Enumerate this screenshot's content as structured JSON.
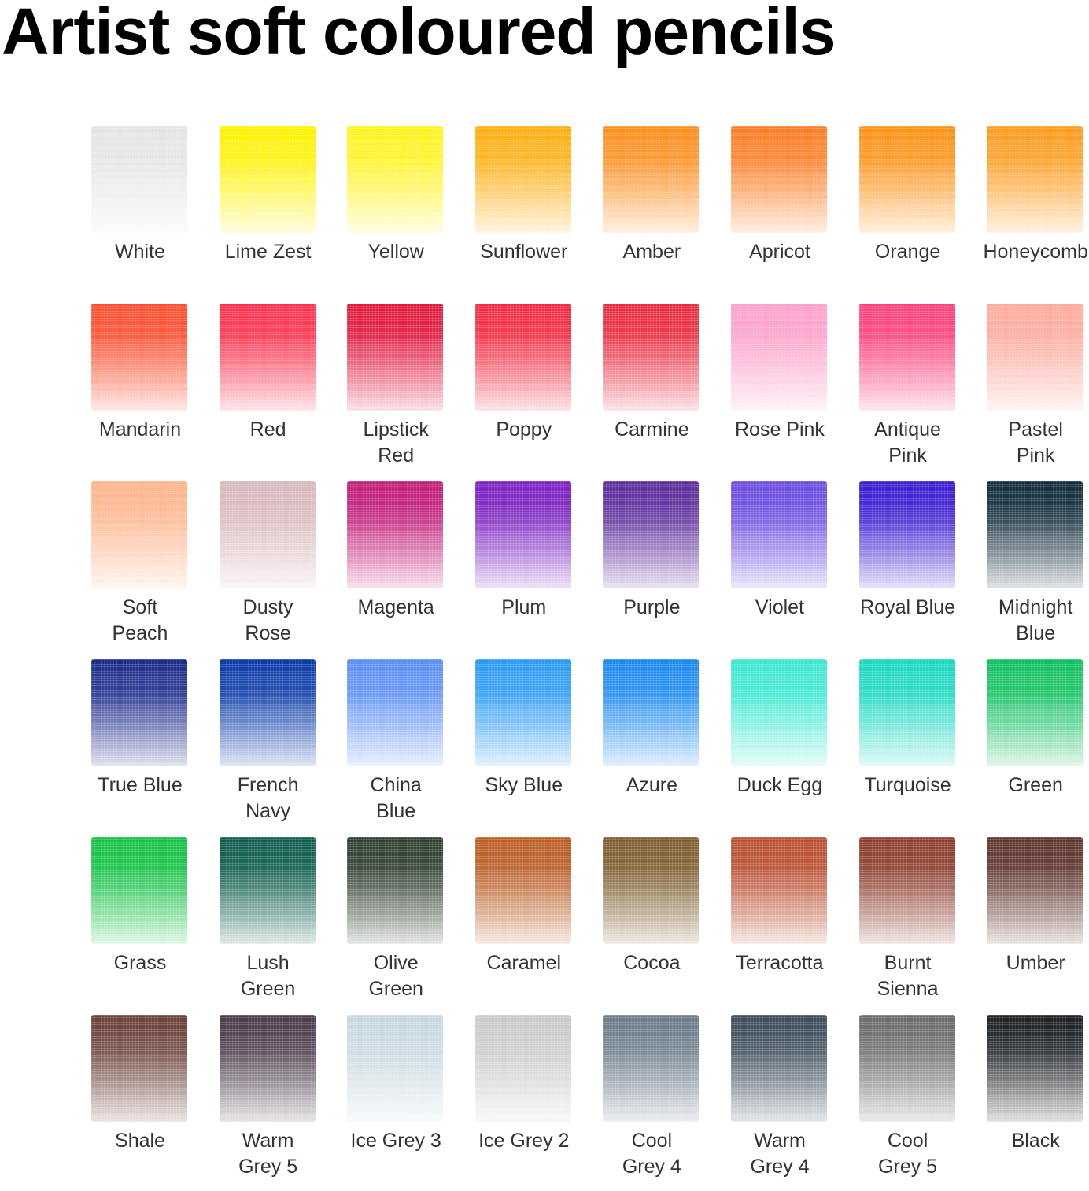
{
  "title": "Artist soft coloured pencils",
  "swatches": [
    {
      "name": [
        "White"
      ],
      "color": "#e4e4e4"
    },
    {
      "name": [
        "Lime Zest"
      ],
      "color": "#fff200"
    },
    {
      "name": [
        "Yellow"
      ],
      "color": "#fff31a"
    },
    {
      "name": [
        "Sunflower"
      ],
      "color": "#ffae0d"
    },
    {
      "name": [
        "Amber"
      ],
      "color": "#ff8c1a"
    },
    {
      "name": [
        "Apricot"
      ],
      "color": "#ff7a1f"
    },
    {
      "name": [
        "Orange"
      ],
      "color": "#ff9012"
    },
    {
      "name": [
        "Honeycomb"
      ],
      "color": "#ff9a1a"
    },
    {
      "name": [
        "Mandarin"
      ],
      "color": "#ff4a2a"
    },
    {
      "name": [
        "Red"
      ],
      "color": "#ff2e4a"
    },
    {
      "name": [
        "Lipstick",
        "Red"
      ],
      "color": "#e0153a"
    },
    {
      "name": [
        "Poppy"
      ],
      "color": "#f2283e"
    },
    {
      "name": [
        "Carmine"
      ],
      "color": "#e8283c"
    },
    {
      "name": [
        "Rose Pink"
      ],
      "color": "#ff9ec8"
    },
    {
      "name": [
        "Antique",
        "Pink"
      ],
      "color": "#ff3d78"
    },
    {
      "name": [
        "Pastel",
        "Pink"
      ],
      "color": "#ffa89a"
    },
    {
      "name": [
        "Soft",
        "Peach"
      ],
      "color": "#ffb38a"
    },
    {
      "name": [
        "Dusty",
        "Rose"
      ],
      "color": "#d8b8bc"
    },
    {
      "name": [
        "Magenta"
      ],
      "color": "#c01a78"
    },
    {
      "name": [
        "Plum"
      ],
      "color": "#7a1fc0"
    },
    {
      "name": [
        "Purple"
      ],
      "color": "#5a2a9a"
    },
    {
      "name": [
        "Violet"
      ],
      "color": "#6a4ae0"
    },
    {
      "name": [
        "Royal Blue"
      ],
      "color": "#3a1ad0"
    },
    {
      "name": [
        "Midnight",
        "Blue"
      ],
      "color": "#0f2a3a"
    },
    {
      "name": [
        "True Blue"
      ],
      "color": "#1a2a8a"
    },
    {
      "name": [
        "French",
        "Navy"
      ],
      "color": "#0a3aa8"
    },
    {
      "name": [
        "China",
        "Blue"
      ],
      "color": "#5a8ef5"
    },
    {
      "name": [
        "Sky Blue"
      ],
      "color": "#2a9af5"
    },
    {
      "name": [
        "Azure"
      ],
      "color": "#1a88f0"
    },
    {
      "name": [
        "Duck Egg"
      ],
      "color": "#3ae8d0"
    },
    {
      "name": [
        "Turquoise"
      ],
      "color": "#1ad8c0"
    },
    {
      "name": [
        "Green"
      ],
      "color": "#10c060"
    },
    {
      "name": [
        "Grass"
      ],
      "color": "#10c040"
    },
    {
      "name": [
        "Lush",
        "Green"
      ],
      "color": "#0a5a4a"
    },
    {
      "name": [
        "Olive",
        "Green"
      ],
      "color": "#2a3a2a"
    },
    {
      "name": [
        "Caramel"
      ],
      "color": "#b85a20"
    },
    {
      "name": [
        "Cocoa"
      ],
      "color": "#7a5a2a"
    },
    {
      "name": [
        "Terracotta"
      ],
      "color": "#b84a2a"
    },
    {
      "name": [
        "Burnt",
        "Sienna"
      ],
      "color": "#8a3a2a"
    },
    {
      "name": [
        "Umber"
      ],
      "color": "#5a3028"
    },
    {
      "name": [
        "Shale"
      ],
      "color": "#6a4038"
    },
    {
      "name": [
        "Warm",
        "Grey 5"
      ],
      "color": "#4a3a4a"
    },
    {
      "name": [
        "Ice Grey 3"
      ],
      "color": "#c8d8e0"
    },
    {
      "name": [
        "Ice Grey 2"
      ],
      "color": "#c8cacc"
    },
    {
      "name": [
        "Cool",
        "Grey 4"
      ],
      "color": "#6a7a88"
    },
    {
      "name": [
        "Warm",
        "Grey 4"
      ],
      "color": "#3a4a58"
    },
    {
      "name": [
        "Cool",
        "Grey 5"
      ],
      "color": "#6a6a6a"
    },
    {
      "name": [
        "Black"
      ],
      "color": "#1a1e22"
    }
  ]
}
